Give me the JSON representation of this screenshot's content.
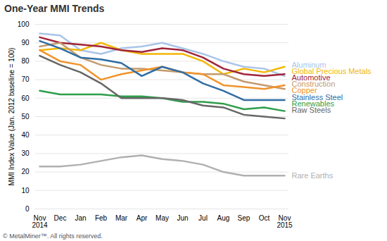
{
  "chart_data": {
    "type": "line",
    "title": "One-Year MMI Trends",
    "y_label": "MMI Index Value (Jan. 2012 baseline = 100)",
    "caption": "© MetalMiner™. All rights reserved.",
    "categories": [
      "Nov\n2014",
      "Dec",
      "Jan",
      "Feb",
      "Mar",
      "Apr",
      "May",
      "Jun",
      "Jul",
      "Aug",
      "Sep",
      "Oct",
      "Nov\n2015"
    ],
    "series": [
      {
        "name": "Aluminum",
        "color": "#a9c4e8",
        "values": [
          95,
          94,
          86,
          84,
          87,
          88,
          90,
          87,
          84,
          80,
          77,
          76,
          72
        ]
      },
      {
        "name": "Global Precious Metals",
        "color": "#f2b705",
        "values": [
          86,
          87,
          86,
          90,
          86,
          84,
          84,
          84,
          80,
          73,
          76,
          74,
          77
        ]
      },
      {
        "name": "Automotive",
        "color": "#a0243a",
        "values": [
          93,
          90,
          89,
          88,
          86,
          85,
          87,
          86,
          82,
          76,
          73,
          72,
          73
        ]
      },
      {
        "name": "Construction",
        "color": "#c49a6c",
        "values": [
          88,
          90,
          82,
          78,
          76,
          76,
          75,
          74,
          73,
          73,
          69,
          67,
          65
        ]
      },
      {
        "name": "Copper",
        "color": "#f0932b",
        "values": [
          86,
          80,
          78,
          70,
          73,
          75,
          77,
          74,
          73,
          67,
          66,
          65,
          67
        ]
      },
      {
        "name": "Stainless Steel",
        "color": "#2e6da4",
        "values": [
          91,
          87,
          82,
          81,
          79,
          72,
          77,
          74,
          68,
          64,
          59,
          59,
          59
        ]
      },
      {
        "name": "Renewables",
        "color": "#2e9e4a",
        "values": [
          64,
          62,
          62,
          62,
          61,
          61,
          60,
          58,
          58,
          57,
          54,
          55,
          53
        ]
      },
      {
        "name": "Raw Steels",
        "color": "#666666",
        "values": [
          83,
          78,
          74,
          68,
          60,
          60,
          60,
          59,
          56,
          55,
          51,
          50,
          49
        ]
      },
      {
        "name": "Rare Earths",
        "color": "#b0b0b0",
        "values": [
          23,
          23,
          24,
          26,
          28,
          29,
          27,
          26,
          24,
          20,
          18,
          18,
          18
        ]
      }
    ],
    "ylim": [
      0,
      100
    ],
    "yticks": [
      0,
      10,
      20,
      30,
      40,
      50,
      60,
      70,
      80,
      90,
      100
    ],
    "grid": true,
    "legend": "right"
  }
}
